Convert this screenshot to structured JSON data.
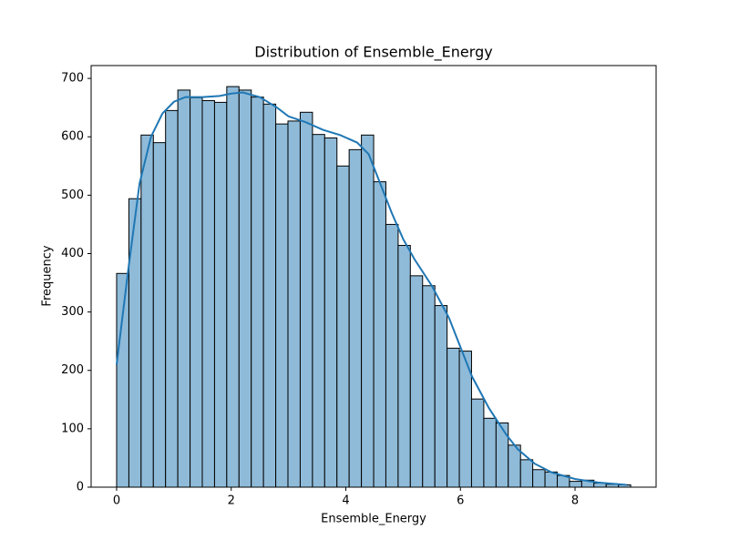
{
  "chart_data": {
    "type": "histogram",
    "title": "Distribution of Ensemble_Energy",
    "xlabel": "Ensemble_Energy",
    "ylabel": "Frequency",
    "bins": [
      0,
      0.214,
      0.427,
      0.641,
      0.854,
      1.068,
      1.282,
      1.495,
      1.709,
      1.922,
      2.136,
      2.35,
      2.563,
      2.777,
      2.99,
      3.204,
      3.418,
      3.631,
      3.845,
      4.058,
      4.272,
      4.486,
      4.699,
      4.913,
      5.126,
      5.34,
      5.554,
      5.767,
      5.981,
      6.194,
      6.408,
      6.622,
      6.835,
      7.049,
      7.262,
      7.476,
      7.69,
      7.903,
      8.117,
      8.33,
      8.544,
      8.758,
      8.971
    ],
    "counts": [
      366,
      494,
      603,
      590,
      645,
      680,
      667,
      662,
      659,
      686,
      680,
      668,
      656,
      622,
      627,
      642,
      604,
      598,
      550,
      578,
      603,
      523,
      450,
      414,
      362,
      345,
      311,
      238,
      233,
      151,
      118,
      110,
      72,
      47,
      30,
      26,
      20,
      10,
      12,
      7,
      5,
      4
    ],
    "color": "#8fbbd9",
    "edgecolor": "#000000",
    "kde": {
      "color": "#1f77b4",
      "x": [
        0,
        0.2,
        0.4,
        0.6,
        0.8,
        1.0,
        1.2,
        1.5,
        1.8,
        2.0,
        2.2,
        2.5,
        2.8,
        3.0,
        3.3,
        3.6,
        3.9,
        4.2,
        4.4,
        4.6,
        4.8,
        5.0,
        5.2,
        5.5,
        5.8,
        6.0,
        6.2,
        6.5,
        6.8,
        7.0,
        7.3,
        7.6,
        8.0,
        8.4,
        8.9
      ],
      "values": [
        210,
        370,
        520,
        600,
        640,
        660,
        668,
        668,
        670,
        674,
        676,
        668,
        650,
        635,
        625,
        612,
        603,
        590,
        570,
        520,
        470,
        425,
        390,
        345,
        290,
        240,
        190,
        135,
        90,
        65,
        40,
        25,
        14,
        8,
        4
      ]
    },
    "xlim": [
      -0.445,
      9.415
    ],
    "ylim": [
      0,
      722
    ],
    "xticks": [
      0,
      2,
      4,
      6,
      8
    ],
    "yticks": [
      0,
      100,
      200,
      300,
      400,
      500,
      600,
      700
    ]
  }
}
